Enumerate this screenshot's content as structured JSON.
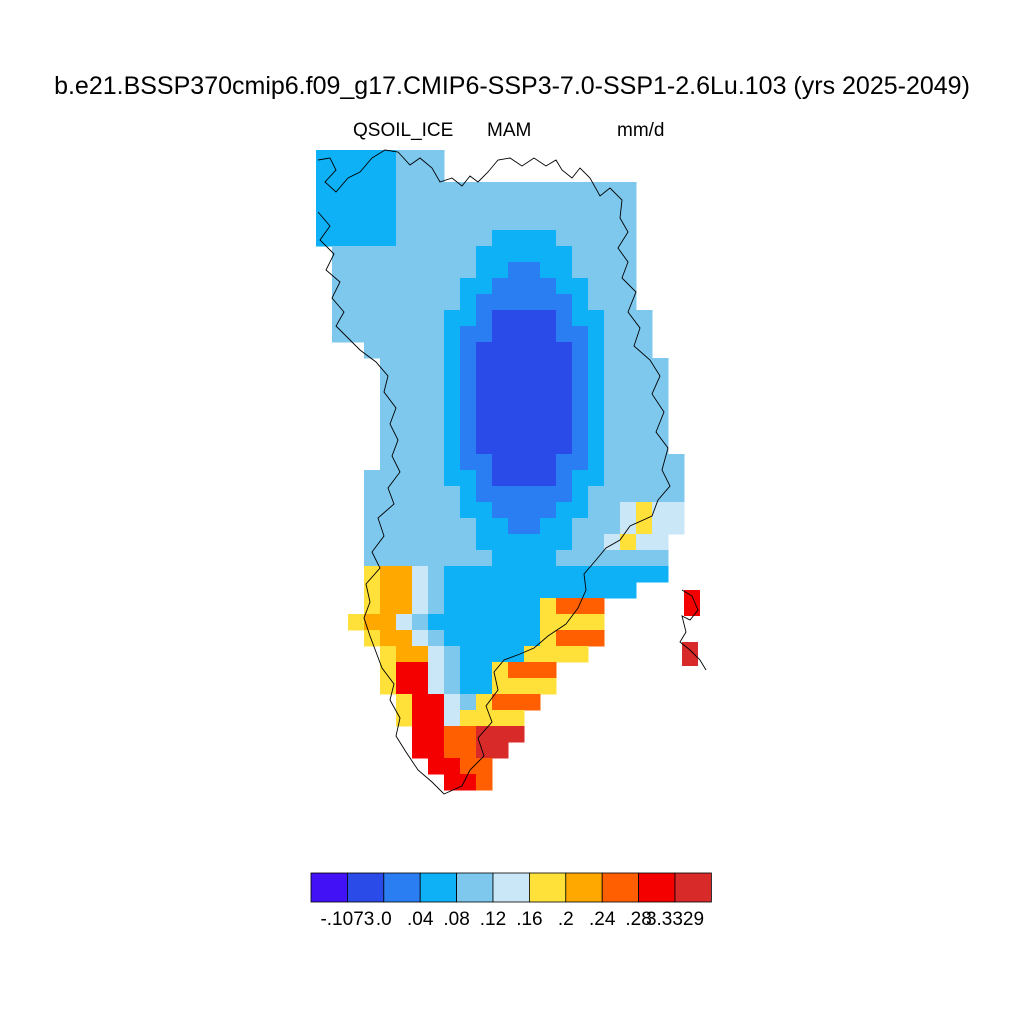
{
  "title": "b.e21.BSSP370cmip6.f09_g17.CMIP6-SSP3-7.0-SSP1-2.6Lu.103 (yrs 2025-2049)",
  "subtitle_left": "QSOIL_ICE",
  "subtitle_center": "MAM",
  "subtitle_right": "mm/d",
  "colorbar": {
    "colors": [
      "#4311f5",
      "#2b4be8",
      "#2a7ef2",
      "#0eb1f6",
      "#7ec8ee",
      "#c9e7f7",
      "#ffe13a",
      "#ffa800",
      "#ff5f00",
      "#f40000",
      "#d92a2a"
    ],
    "labels": [
      "-.1073",
      ".0",
      ".04",
      ".08",
      ".12",
      ".16",
      ".2",
      ".24",
      ".28",
      "3.3329"
    ]
  },
  "legend_position": "bottom-center"
}
